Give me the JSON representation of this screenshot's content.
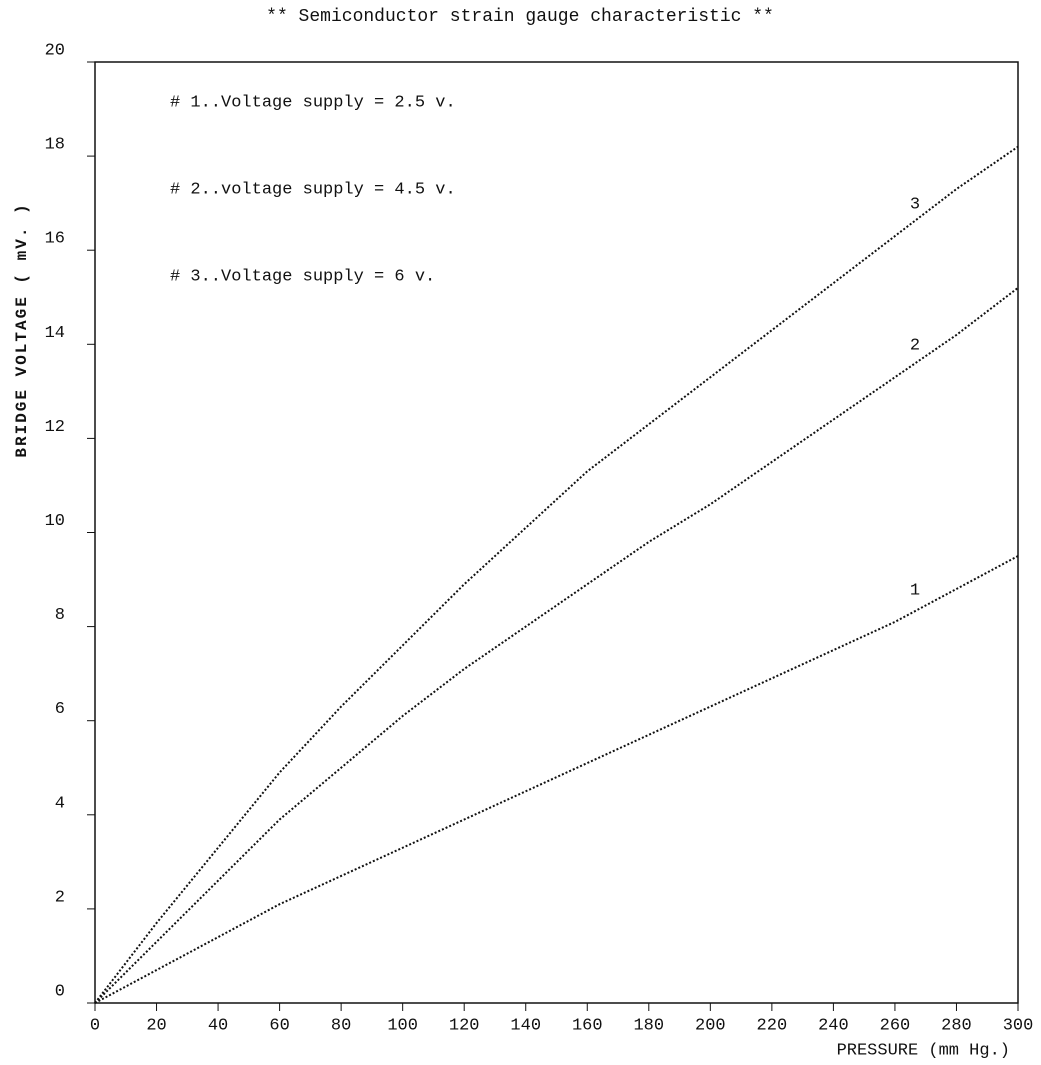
{
  "chart_data": {
    "type": "line",
    "title": "** Semiconductor strain gauge characteristic **",
    "x_label": "PRESSURE (mm Hg.)",
    "y_label": "BRIDGE VOLTAGE ( mV. )",
    "annotations": [
      "# 1..Voltage supply = 2.5 v.",
      "# 2..voltage supply = 4.5 v.",
      "# 3..Voltage supply = 6 v."
    ],
    "x": [
      0,
      20,
      40,
      60,
      80,
      100,
      120,
      140,
      160,
      180,
      200,
      220,
      240,
      260,
      280,
      300
    ],
    "series": [
      {
        "name": "1",
        "color": "#111111",
        "values": [
          0,
          0.7,
          1.4,
          2.1,
          2.7,
          3.3,
          3.9,
          4.5,
          5.1,
          5.7,
          6.3,
          6.9,
          7.5,
          8.1,
          8.8,
          9.5
        ]
      },
      {
        "name": "2",
        "color": "#111111",
        "values": [
          0,
          1.3,
          2.6,
          3.9,
          5.0,
          6.1,
          7.1,
          8.0,
          8.9,
          9.8,
          10.6,
          11.5,
          12.4,
          13.3,
          14.2,
          15.2
        ]
      },
      {
        "name": "3",
        "color": "#111111",
        "values": [
          0,
          1.7,
          3.3,
          4.9,
          6.3,
          7.6,
          8.9,
          10.1,
          11.3,
          12.3,
          13.3,
          14.3,
          15.3,
          16.3,
          17.3,
          18.2
        ]
      }
    ],
    "xlim": [
      0,
      300
    ],
    "xticks": [
      0,
      20,
      40,
      60,
      80,
      100,
      120,
      140,
      160,
      180,
      200,
      220,
      240,
      260,
      280,
      300
    ],
    "ylim": [
      0,
      20
    ],
    "yticks": [
      0,
      2,
      4,
      6,
      8,
      10,
      12,
      14,
      16,
      18,
      20
    ],
    "grid": false
  }
}
